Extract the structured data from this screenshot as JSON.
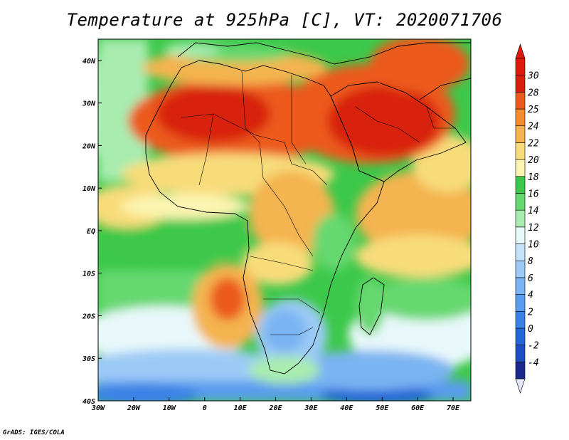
{
  "title": "Temperature at 925hPa [C], VT: 2020071706",
  "credit": "GrADS: IGES/COLA",
  "map": {
    "lon_range": [
      -30,
      75
    ],
    "lat_range": [
      -40,
      45
    ],
    "lon_ticks": [
      {
        "value": -30,
        "label": "30W"
      },
      {
        "value": -20,
        "label": "20W"
      },
      {
        "value": -10,
        "label": "10W"
      },
      {
        "value": 0,
        "label": "0"
      },
      {
        "value": 10,
        "label": "10E"
      },
      {
        "value": 20,
        "label": "20E"
      },
      {
        "value": 30,
        "label": "30E"
      },
      {
        "value": 40,
        "label": "40E"
      },
      {
        "value": 50,
        "label": "50E"
      },
      {
        "value": 60,
        "label": "60E"
      },
      {
        "value": 70,
        "label": "70E"
      }
    ],
    "lat_ticks": [
      {
        "value": 40,
        "label": "40N"
      },
      {
        "value": 30,
        "label": "30N"
      },
      {
        "value": 20,
        "label": "20N"
      },
      {
        "value": 10,
        "label": "10N"
      },
      {
        "value": 0,
        "label": "EQ"
      },
      {
        "value": -10,
        "label": "10S"
      },
      {
        "value": -20,
        "label": "20S"
      },
      {
        "value": -30,
        "label": "30S"
      },
      {
        "value": -40,
        "label": "40S"
      }
    ]
  },
  "colorbar": {
    "labels": [
      "-4",
      "-2",
      "0",
      "2",
      "4",
      "6",
      "8",
      "10",
      "12",
      "14",
      "16",
      "18",
      "20",
      "22",
      "24",
      "25",
      "28",
      "30"
    ],
    "colors": [
      "#1a2a8c",
      "#1e4fc2",
      "#2266d8",
      "#3a82e6",
      "#5a9cee",
      "#7ab4f2",
      "#9ccaf6",
      "#c4e2fa",
      "#e8f8fa",
      "#a8ecb0",
      "#66d870",
      "#3cc84a",
      "#fcf4b0",
      "#f8dc7a",
      "#f4b450",
      "#f28c2e",
      "#ec5a1e",
      "#d8200c",
      "#e01a0a"
    ],
    "under_color": "#e6e6fa",
    "over_color": "#e01a0a"
  }
}
